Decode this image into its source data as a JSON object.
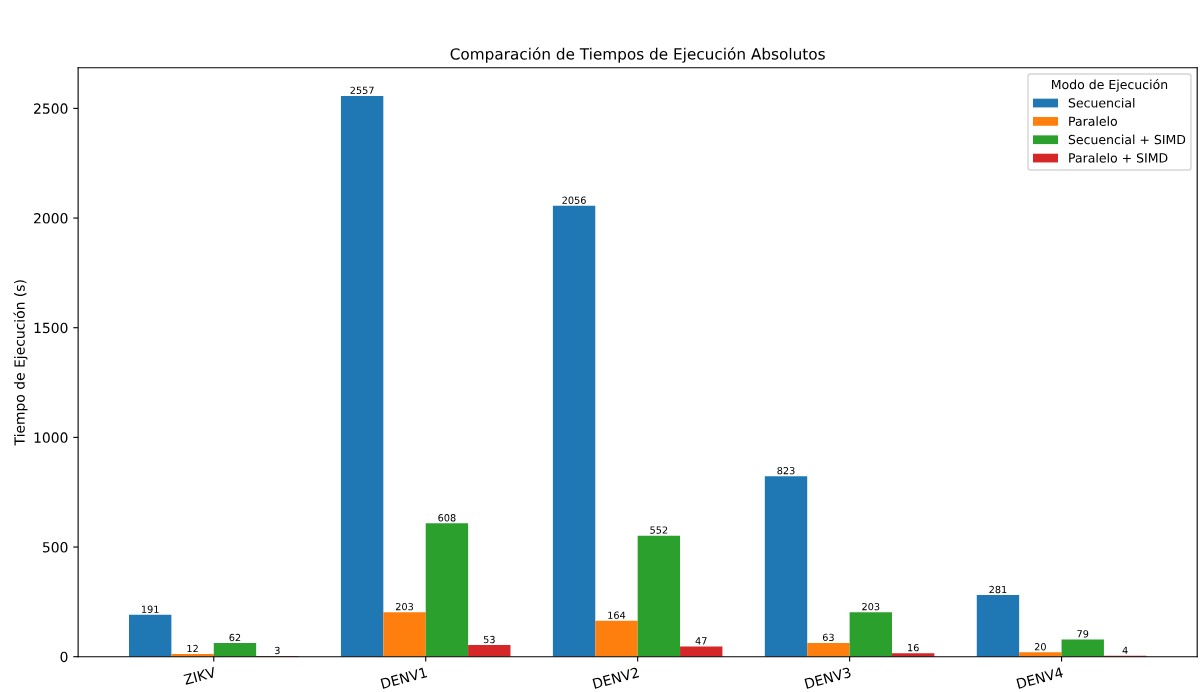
{
  "chart_data": {
    "type": "bar",
    "title": "Comparación de Tiempos de Ejecución Absolutos",
    "ylabel": "Tiempo de Ejecución (s)",
    "legend_title": "Modo de Ejecución",
    "categories": [
      "ZIKV",
      "DENV1",
      "DENV2",
      "DENV3",
      "DENV4"
    ],
    "series": [
      {
        "name": "Secuencial",
        "color": "#1f77b4",
        "values": [
          191,
          2557,
          2056,
          823,
          281
        ]
      },
      {
        "name": "Paralelo",
        "color": "#ff7f0e",
        "values": [
          12,
          203,
          164,
          63,
          20
        ]
      },
      {
        "name": "Secuencial + SIMD",
        "color": "#2ca02c",
        "values": [
          62,
          608,
          552,
          203,
          79
        ]
      },
      {
        "name": "Paralelo + SIMD",
        "color": "#d62728",
        "values": [
          3,
          53,
          47,
          16,
          4
        ]
      }
    ],
    "ylim": [
      0,
      2685
    ],
    "yticks": [
      0,
      500,
      1000,
      1500,
      2000,
      2500
    ],
    "data_labels": true,
    "legend": "top right",
    "grid": false
  }
}
